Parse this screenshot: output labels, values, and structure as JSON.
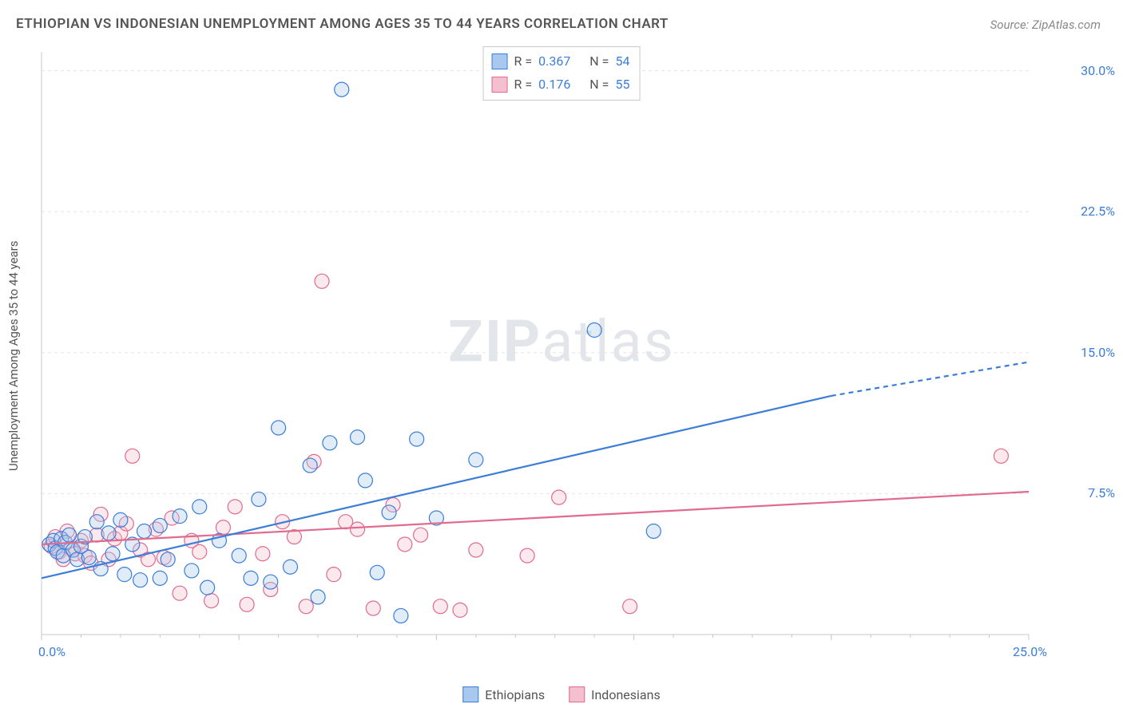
{
  "title": "ETHIOPIAN VS INDONESIAN UNEMPLOYMENT AMONG AGES 35 TO 44 YEARS CORRELATION CHART",
  "source": "Source: ZipAtlas.com",
  "ylabel": "Unemployment Among Ages 35 to 44 years",
  "watermark_a": "ZIP",
  "watermark_b": "atlas",
  "chart": {
    "type": "scatter",
    "background_color": "#ffffff",
    "grid_color": "#e5e5e5",
    "axis_color": "#c9c9c9",
    "tick_color": "#c9c9c9",
    "label_color_axis": "#3b7dd8",
    "text_color": "#555555",
    "marker_radius": 9,
    "marker_stroke_width": 1.2,
    "marker_fill_opacity": 0.35,
    "trend_line_width": 2.2,
    "xlim": [
      0,
      25
    ],
    "ylim": [
      0,
      31
    ],
    "x_tick_step": 5,
    "y_tick_step": 7.5,
    "x_axis_labels": {
      "min": "0.0%",
      "max": "25.0%"
    },
    "y_axis_labels": [
      "7.5%",
      "15.0%",
      "22.5%",
      "30.0%"
    ],
    "series": [
      {
        "name": "Ethiopians",
        "color_fill": "#a9c8ef",
        "color_stroke": "#3b7dd8",
        "r_value": "0.367",
        "n_value": "54",
        "points": [
          [
            0.2,
            4.8
          ],
          [
            0.3,
            5.0
          ],
          [
            0.35,
            4.6
          ],
          [
            0.4,
            4.4
          ],
          [
            0.5,
            5.1
          ],
          [
            0.55,
            4.2
          ],
          [
            0.6,
            4.9
          ],
          [
            0.7,
            5.3
          ],
          [
            0.8,
            4.5
          ],
          [
            0.9,
            4.0
          ],
          [
            1.0,
            4.7
          ],
          [
            1.1,
            5.2
          ],
          [
            1.2,
            4.1
          ],
          [
            1.4,
            6.0
          ],
          [
            1.5,
            3.5
          ],
          [
            1.7,
            5.4
          ],
          [
            1.8,
            4.3
          ],
          [
            2.0,
            6.1
          ],
          [
            2.1,
            3.2
          ],
          [
            2.3,
            4.8
          ],
          [
            2.5,
            2.9
          ],
          [
            2.6,
            5.5
          ],
          [
            3.0,
            3.0
          ],
          [
            3.0,
            5.8
          ],
          [
            3.2,
            4.0
          ],
          [
            3.5,
            6.3
          ],
          [
            3.8,
            3.4
          ],
          [
            4.0,
            6.8
          ],
          [
            4.2,
            2.5
          ],
          [
            4.5,
            5.0
          ],
          [
            5.0,
            4.2
          ],
          [
            5.3,
            3.0
          ],
          [
            5.5,
            7.2
          ],
          [
            5.8,
            2.8
          ],
          [
            6.0,
            11.0
          ],
          [
            6.3,
            3.6
          ],
          [
            6.8,
            9.0
          ],
          [
            7.0,
            2.0
          ],
          [
            7.3,
            10.2
          ],
          [
            7.6,
            29.0
          ],
          [
            8.0,
            10.5
          ],
          [
            8.2,
            8.2
          ],
          [
            8.5,
            3.3
          ],
          [
            8.8,
            6.5
          ],
          [
            9.1,
            1.0
          ],
          [
            9.5,
            10.4
          ],
          [
            10.0,
            6.2
          ],
          [
            11.0,
            9.3
          ],
          [
            14.0,
            16.2
          ],
          [
            15.5,
            5.5
          ]
        ],
        "trend": {
          "x1": 0,
          "y1": 3.0,
          "x2": 20,
          "y2": 12.7,
          "dash_from_x": 20,
          "dash_to_x": 25,
          "dash_to_y": 14.5
        }
      },
      {
        "name": "Indonesians",
        "color_fill": "#f4c0cf",
        "color_stroke": "#e06b8f",
        "r_value": "0.176",
        "n_value": "55",
        "points": [
          [
            0.25,
            4.7
          ],
          [
            0.35,
            5.2
          ],
          [
            0.45,
            4.4
          ],
          [
            0.55,
            4.0
          ],
          [
            0.65,
            5.5
          ],
          [
            0.75,
            4.6
          ],
          [
            0.85,
            4.3
          ],
          [
            1.0,
            5.0
          ],
          [
            1.1,
            4.2
          ],
          [
            1.25,
            3.8
          ],
          [
            1.4,
            5.3
          ],
          [
            1.5,
            6.4
          ],
          [
            1.7,
            4.0
          ],
          [
            1.85,
            5.1
          ],
          [
            2.0,
            5.4
          ],
          [
            2.15,
            5.9
          ],
          [
            2.3,
            9.5
          ],
          [
            2.5,
            4.5
          ],
          [
            2.7,
            4.0
          ],
          [
            2.9,
            5.6
          ],
          [
            3.1,
            4.1
          ],
          [
            3.3,
            6.2
          ],
          [
            3.5,
            2.2
          ],
          [
            3.8,
            5.0
          ],
          [
            4.0,
            4.4
          ],
          [
            4.3,
            1.8
          ],
          [
            4.6,
            5.7
          ],
          [
            4.9,
            6.8
          ],
          [
            5.2,
            1.6
          ],
          [
            5.6,
            4.3
          ],
          [
            5.8,
            2.4
          ],
          [
            6.1,
            6.0
          ],
          [
            6.4,
            5.2
          ],
          [
            6.7,
            1.5
          ],
          [
            6.9,
            9.2
          ],
          [
            7.1,
            18.8
          ],
          [
            7.4,
            3.2
          ],
          [
            7.7,
            6.0
          ],
          [
            8.0,
            5.6
          ],
          [
            8.4,
            1.4
          ],
          [
            8.9,
            6.9
          ],
          [
            9.2,
            4.8
          ],
          [
            9.6,
            5.3
          ],
          [
            10.1,
            1.5
          ],
          [
            10.6,
            1.3
          ],
          [
            11.0,
            4.5
          ],
          [
            12.3,
            4.2
          ],
          [
            13.1,
            7.3
          ],
          [
            14.9,
            1.5
          ],
          [
            24.3,
            9.5
          ]
        ],
        "trend": {
          "x1": 0,
          "y1": 4.8,
          "x2": 25,
          "y2": 7.6
        }
      }
    ]
  },
  "series1_legend": "Ethiopians",
  "series2_legend": "Indonesians",
  "legend_r_label": "R =",
  "legend_n_label": "N ="
}
